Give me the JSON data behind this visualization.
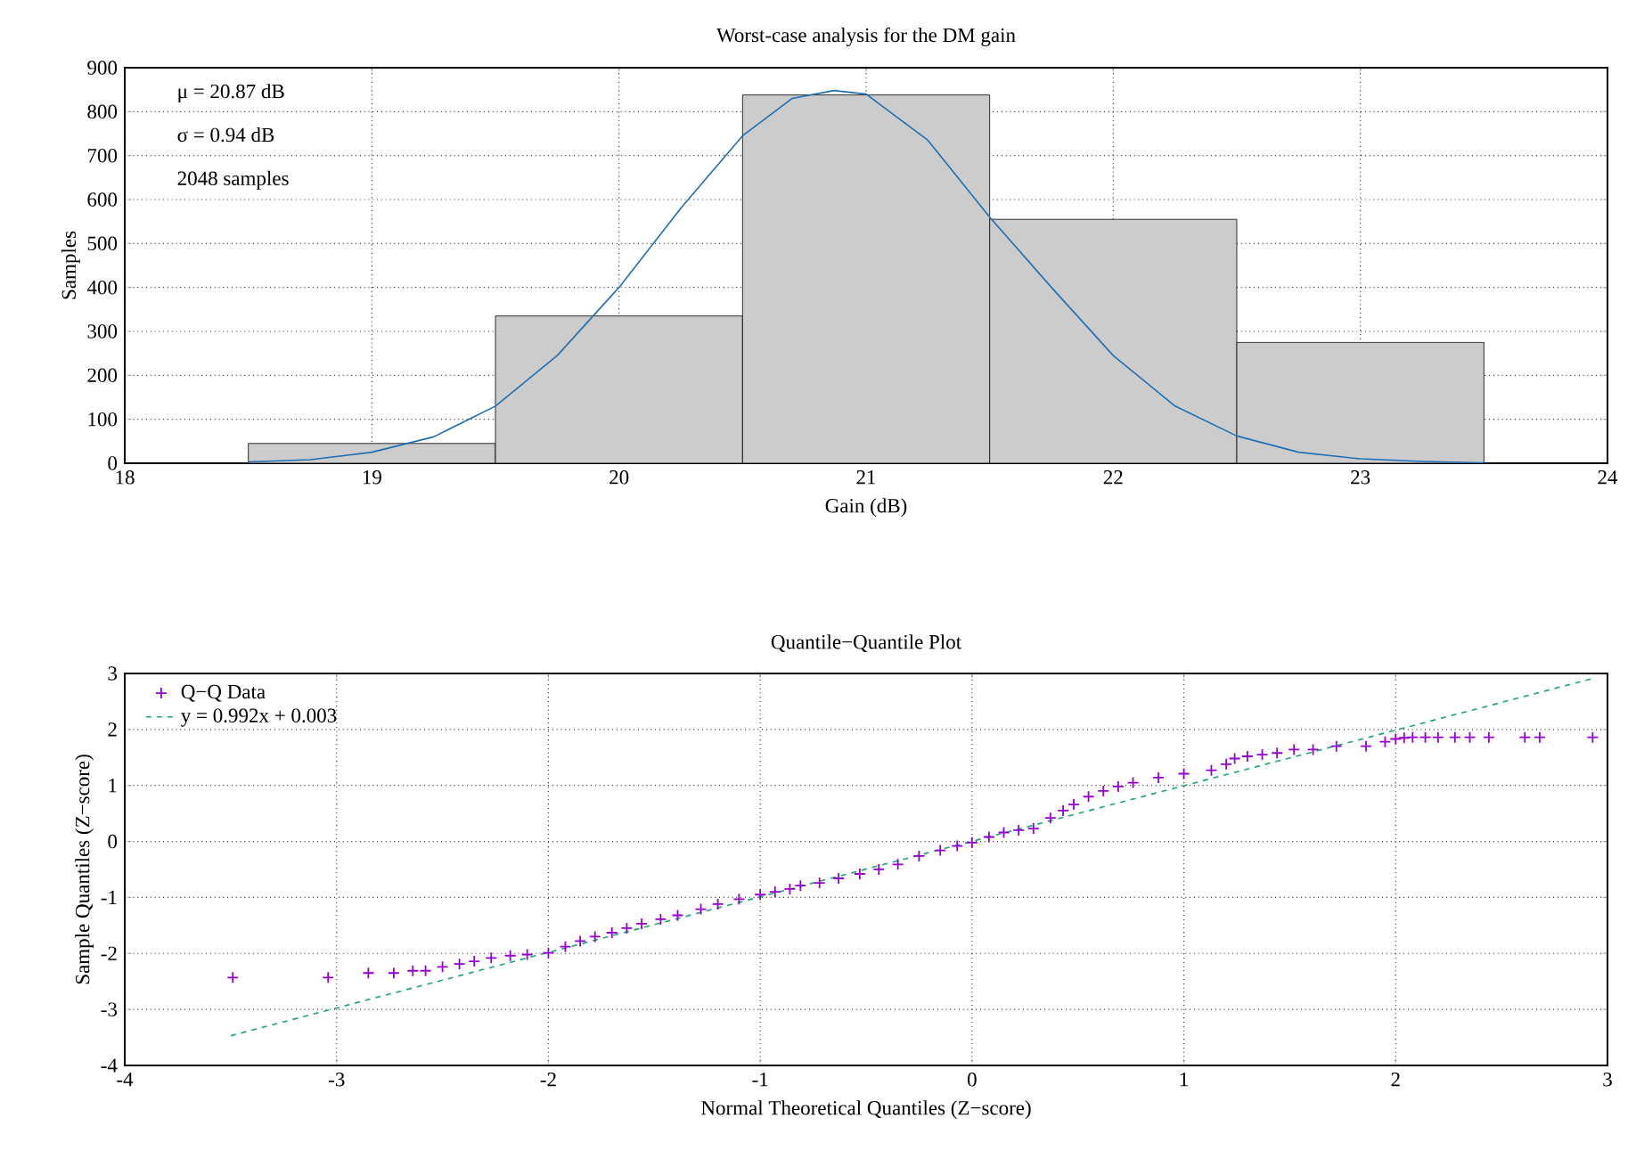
{
  "chart_data": [
    {
      "type": "histogram",
      "title": "Worst-case analysis for the DM gain",
      "xlabel": "Gain (dB)",
      "ylabel": "Samples",
      "annotations": [
        "μ = 20.87 dB",
        "σ = 0.94 dB",
        "2048 samples"
      ],
      "xlim": [
        18,
        24
      ],
      "ylim": [
        0,
        900
      ],
      "xticks": [
        18,
        19,
        20,
        21,
        22,
        23,
        24
      ],
      "yticks": [
        0,
        100,
        200,
        300,
        400,
        500,
        600,
        700,
        800,
        900
      ],
      "grid": true,
      "legend": false,
      "series": [
        {
          "color": "#cccccc",
          "bins": [
            18.5,
            19.5,
            20.5,
            21.5,
            22.5,
            23.5
          ],
          "values": [
            45,
            335,
            838,
            555,
            275
          ]
        },
        {
          "type": "line",
          "color": "#1f6fb4",
          "x": [
            18.5,
            18.75,
            19,
            19.25,
            19.5,
            19.75,
            20,
            20.25,
            20.5,
            20.7,
            20.87,
            21,
            21.25,
            21.5,
            21.75,
            22,
            22.25,
            22.5,
            22.75,
            23,
            23.25,
            23.5
          ],
          "values": [
            3,
            8,
            25,
            60,
            130,
            245,
            400,
            580,
            745,
            830,
            848,
            840,
            735,
            560,
            400,
            245,
            130,
            62,
            25,
            10,
            4,
            1
          ]
        }
      ]
    },
    {
      "type": "scatter",
      "title": "Quantile−Quantile Plot",
      "xlabel": "Normal Theoretical Quantiles (Z−score)",
      "ylabel": "Sample Quantiles (Z−score)",
      "xlim": [
        -4,
        3
      ],
      "ylim": [
        -4,
        3
      ],
      "xticks": [
        -4,
        -3,
        -2,
        -1,
        0,
        1,
        2,
        3
      ],
      "yticks": [
        -4,
        -3,
        -2,
        -1,
        0,
        1,
        2,
        3
      ],
      "grid": true,
      "legend": "top left",
      "series": [
        {
          "name": "Q−Q Data",
          "marker": "cross",
          "color": "#9400d3",
          "x": [
            -3.49,
            -3.04,
            -2.85,
            -2.73,
            -2.64,
            -2.58,
            -2.5,
            -2.42,
            -2.35,
            -2.27,
            -2.18,
            -2.1,
            -2.0,
            -1.92,
            -1.85,
            -1.78,
            -1.7,
            -1.63,
            -1.56,
            -1.47,
            -1.39,
            -1.28,
            -1.2,
            -1.1,
            -1.0,
            -0.93,
            -0.86,
            -0.81,
            -0.72,
            -0.63,
            -0.53,
            -0.44,
            -0.35,
            -0.25,
            -0.15,
            -0.07,
            0,
            0.08,
            0.15,
            0.22,
            0.29,
            0.37,
            0.43,
            0.48,
            0.55,
            0.62,
            0.69,
            0.76,
            0.88,
            1.0,
            1.13,
            1.2,
            1.24,
            1.3,
            1.37,
            1.44,
            1.52,
            1.61,
            1.72,
            1.86,
            1.95,
            2.0,
            2.04,
            2.08,
            2.14,
            2.2,
            2.28,
            2.35,
            2.44,
            2.61,
            2.68,
            2.93
          ],
          "values": [
            -2.43,
            -2.43,
            -2.35,
            -2.35,
            -2.31,
            -2.31,
            -2.24,
            -2.19,
            -2.14,
            -2.08,
            -2.04,
            -2.02,
            -1.99,
            -1.88,
            -1.78,
            -1.7,
            -1.63,
            -1.55,
            -1.47,
            -1.39,
            -1.32,
            -1.21,
            -1.12,
            -1.03,
            -0.95,
            -0.9,
            -0.85,
            -0.79,
            -0.74,
            -0.66,
            -0.58,
            -0.5,
            -0.41,
            -0.26,
            -0.16,
            -0.08,
            -0.02,
            0.08,
            0.16,
            0.2,
            0.23,
            0.42,
            0.55,
            0.66,
            0.8,
            0.9,
            0.98,
            1.05,
            1.14,
            1.21,
            1.27,
            1.38,
            1.48,
            1.52,
            1.55,
            1.58,
            1.64,
            1.64,
            1.7,
            1.7,
            1.78,
            1.83,
            1.85,
            1.86,
            1.86,
            1.86,
            1.86,
            1.86,
            1.86,
            1.86,
            1.86,
            1.86
          ]
        },
        {
          "name": "y = 0.992x + 0.003",
          "type": "line",
          "line_style": "dashed",
          "color": "#1aa37a",
          "x": [
            -3.5,
            2.93
          ],
          "values": [
            -3.47,
            2.91
          ]
        }
      ]
    }
  ]
}
